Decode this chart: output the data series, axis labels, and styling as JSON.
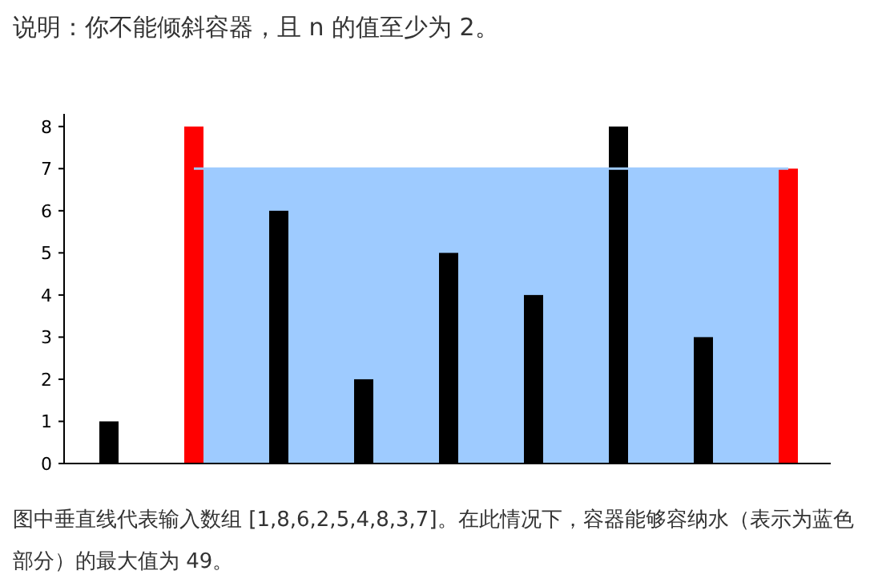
{
  "chart_data": {
    "type": "bar",
    "title": "说明：你不能倾斜容器，且 n 的值至少为 2。",
    "categories": [
      null,
      null,
      null,
      null,
      null,
      null,
      null,
      null,
      null
    ],
    "series": [
      {
        "type": "area",
        "color": "#9ecbff",
        "values": [
          null,
          7,
          7,
          7,
          7,
          7,
          7,
          7,
          7
        ]
      },
      {
        "colors": [
          "#000000",
          "#ff0000",
          "#000000",
          "#000000",
          "#000000",
          "#000000",
          "#000000",
          "#000000",
          "#ff0000"
        ],
        "values": [
          1,
          8,
          6,
          2,
          5,
          4,
          8,
          3,
          7
        ]
      }
    ],
    "ylim": [
      0,
      8.3
    ],
    "yticks": [
      0,
      1,
      2,
      3,
      4,
      5,
      6,
      7,
      8
    ],
    "tick_labels": "y",
    "annotations": [
      "图中垂直线代表输入数组 [1,8,6,2,5,4,8,3,7]。在此情况下，容器能够容纳水（表示为蓝色部分）的最大值为 49。"
    ]
  }
}
